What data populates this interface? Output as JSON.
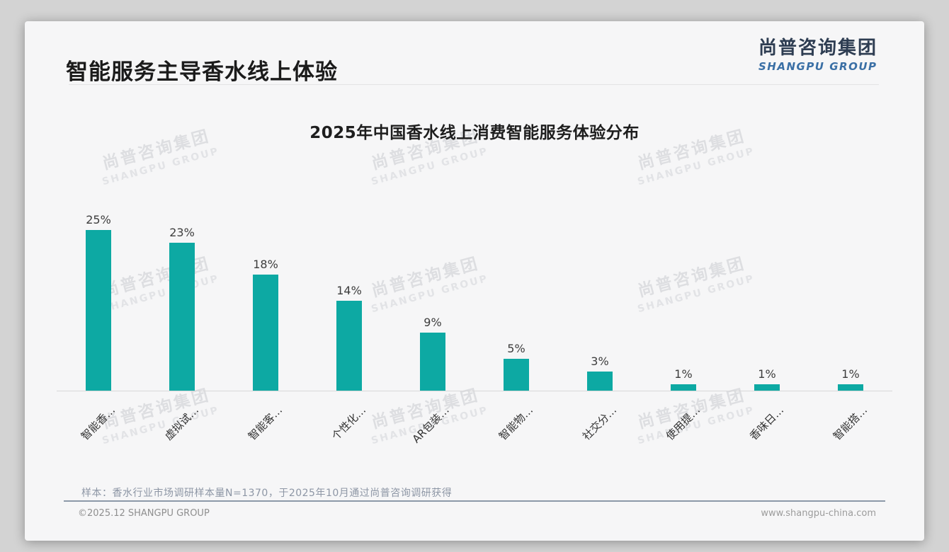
{
  "header": {
    "title": "智能服务主导香水线上体验",
    "logo_cn": "尚普咨询集团",
    "logo_en": "SHANGPU GROUP"
  },
  "watermark": {
    "cn": "尚普咨询集团",
    "en": "SHANGPU GROUP"
  },
  "chart_data": {
    "type": "bar",
    "title": "2025年中国香水线上消费智能服务体验分布",
    "categories": [
      "智能香…",
      "虚拟试…",
      "智能客…",
      "个性化…",
      "AR包装…",
      "智能物…",
      "社交分…",
      "使用提…",
      "香味日…",
      "智能搭…"
    ],
    "values": [
      25,
      23,
      18,
      14,
      9,
      5,
      3,
      1,
      1,
      1
    ],
    "value_suffix": "%",
    "bar_color": "#0da9a3",
    "xlabel": "",
    "ylabel": "",
    "ylim": [
      0,
      27
    ],
    "grid": false,
    "legend": false,
    "x_tick_rotation_deg": 45
  },
  "footer": {
    "source_note": "样本：香水行业市场调研样本量N=1370，于2025年10月通过尚普咨询调研获得",
    "copyright": "©2025.12 SHANGPU GROUP",
    "website": "www.shangpu-china.com"
  }
}
